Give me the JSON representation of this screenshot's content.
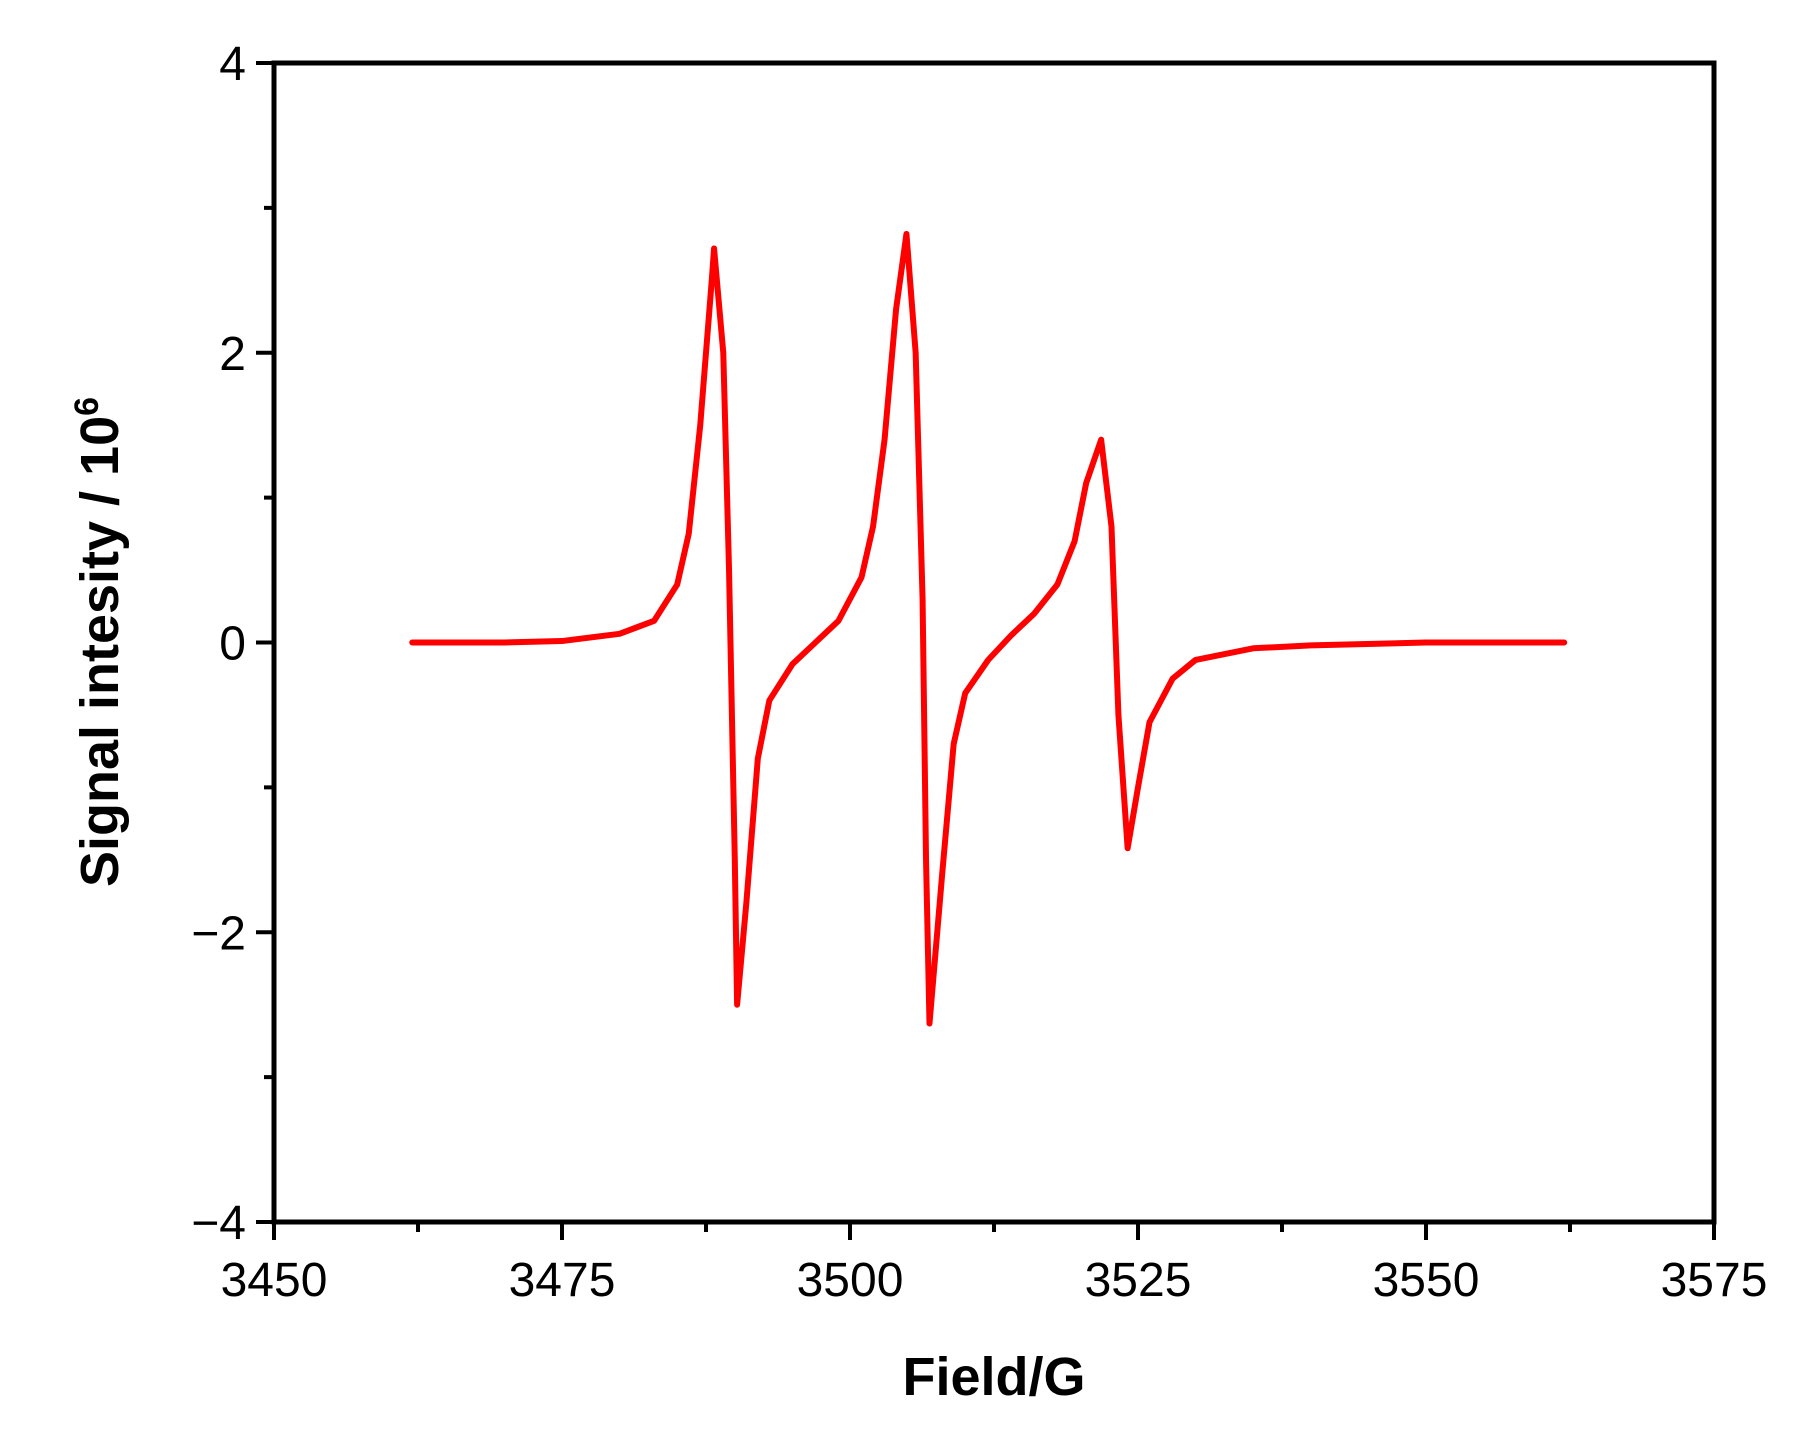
{
  "chart_data": {
    "type": "line",
    "xlabel": "Field/G",
    "ylabel": "Signal intesity / 10",
    "ylabel_superscript": "6",
    "xlim": [
      3450,
      3575
    ],
    "ylim": [
      -4,
      4
    ],
    "xticks": [
      3450,
      3475,
      3500,
      3525,
      3550,
      3575
    ],
    "xminorticks": [
      3462.5,
      3487.5,
      3512.5,
      3537.5,
      3562.5
    ],
    "yticks": [
      {
        "value": -4,
        "label": "−4"
      },
      {
        "value": -2,
        "label": "−2"
      },
      0,
      2,
      4
    ],
    "yminorticks": [
      -3,
      -1,
      1,
      3
    ],
    "grid": false,
    "series": [
      {
        "color": "#ff0000",
        "x": [
          3462,
          3470,
          3475,
          3480,
          3483,
          3485,
          3486,
          3487,
          3488,
          3488.2,
          3489,
          3489.5,
          3490,
          3490.2,
          3491,
          3492,
          3493,
          3495,
          3497,
          3499,
          3501,
          3502,
          3503,
          3504,
          3504.9,
          3505.7,
          3506.3,
          3506.6,
          3506.9,
          3508,
          3509,
          3510,
          3512,
          3514,
          3516,
          3518,
          3519.5,
          3520.5,
          3521.8,
          3522.7,
          3523.3,
          3524.1,
          3525,
          3526,
          3528,
          3530,
          3535,
          3540,
          3550,
          3562
        ],
        "values": [
          0,
          0,
          0.01,
          0.06,
          0.15,
          0.4,
          0.75,
          1.5,
          2.5,
          2.72,
          2.0,
          0.5,
          -1.5,
          -2.5,
          -1.8,
          -0.8,
          -0.4,
          -0.15,
          0.0,
          0.15,
          0.45,
          0.8,
          1.4,
          2.3,
          2.82,
          2.0,
          0.3,
          -1.5,
          -2.63,
          -1.6,
          -0.7,
          -0.35,
          -0.12,
          0.05,
          0.2,
          0.4,
          0.7,
          1.1,
          1.4,
          0.8,
          -0.5,
          -1.42,
          -1.0,
          -0.55,
          -0.25,
          -0.12,
          -0.04,
          -0.02,
          0,
          0
        ]
      }
    ]
  }
}
